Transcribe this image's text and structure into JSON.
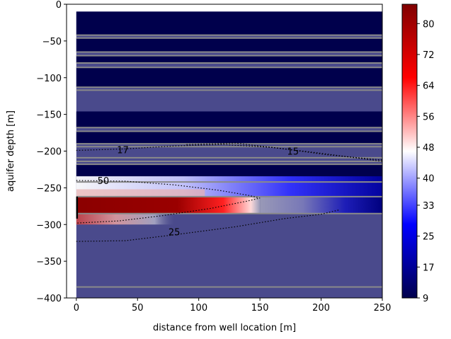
{
  "chart_data": {
    "type": "heatmap",
    "title": "",
    "xlabel": "distance from well location [m]",
    "ylabel": "aquifer depth [m]",
    "xlim": [
      -8,
      250
    ],
    "ylim": [
      -400,
      0
    ],
    "x_ticks": [
      0,
      50,
      100,
      150,
      200,
      250
    ],
    "y_ticks": [
      0,
      -50,
      -100,
      -150,
      -200,
      -250,
      -300,
      -350,
      -400
    ],
    "colormap": "seismic",
    "colorbar": {
      "min": 9,
      "max": 85,
      "ticks": [
        9,
        17,
        25,
        33,
        40,
        48,
        56,
        64,
        72,
        80
      ]
    },
    "background_value": 28,
    "layers": [
      {
        "top": -10,
        "bottom": -42,
        "value": 9
      },
      {
        "top": -46,
        "bottom": -65,
        "value": 9
      },
      {
        "top": -70,
        "bottom": -80,
        "value": 9
      },
      {
        "top": -86,
        "bottom": -113,
        "value": 9
      },
      {
        "top": -146,
        "bottom": -168,
        "value": 9
      },
      {
        "top": -173,
        "bottom": -190,
        "value": 9
      },
      {
        "top": -218,
        "bottom": -242,
        "value": 9
      },
      {
        "top": -262,
        "bottom": -285,
        "value": 9
      }
    ],
    "layer_boundaries": [
      -42,
      -46,
      -65,
      -70,
      -80,
      -86,
      -113,
      -117,
      -168,
      -173,
      -190,
      -194,
      -209,
      -214,
      -218,
      -242,
      -262,
      -285,
      -385
    ],
    "plume": [
      {
        "x_start": 0,
        "x_end": 150,
        "y_top": -262,
        "y_bottom": -285,
        "value": 85
      },
      {
        "x_start": 0,
        "x_end": 120,
        "y_top": -242,
        "y_bottom": -262,
        "value": 62
      },
      {
        "x_start": 0,
        "x_end": 80,
        "y_top": -285,
        "y_bottom": -300,
        "value": 60
      }
    ],
    "well_screen": {
      "x": 0,
      "y_top": -262,
      "y_bottom": -292
    },
    "contours": [
      {
        "label": "17",
        "label_x": 38,
        "label_y": -198,
        "points": [
          [
            0,
            -199
          ],
          [
            40,
            -197
          ],
          [
            80,
            -193
          ],
          [
            120,
            -191
          ],
          [
            160,
            -195
          ],
          [
            200,
            -203
          ],
          [
            250,
            -214
          ]
        ]
      },
      {
        "label": "15",
        "label_x": 177,
        "label_y": -200,
        "points": [
          [
            90,
            -191
          ],
          [
            130,
            -189
          ],
          [
            170,
            -197
          ],
          [
            205,
            -205
          ],
          [
            250,
            -212
          ]
        ]
      },
      {
        "label": "50",
        "label_x": 22,
        "label_y": -240,
        "points": [
          [
            0,
            -240
          ],
          [
            40,
            -241
          ],
          [
            80,
            -246
          ],
          [
            115,
            -253
          ],
          [
            140,
            -260
          ],
          [
            150,
            -264
          ],
          [
            140,
            -268
          ],
          [
            110,
            -278
          ],
          [
            70,
            -288
          ],
          [
            35,
            -295
          ],
          [
            0,
            -298
          ]
        ]
      },
      {
        "label": "25",
        "label_x": 80,
        "label_y": -310,
        "points": [
          [
            0,
            -323
          ],
          [
            40,
            -322
          ],
          [
            80,
            -314
          ],
          [
            130,
            -303
          ],
          [
            170,
            -292
          ],
          [
            200,
            -286
          ],
          [
            215,
            -280
          ]
        ]
      }
    ]
  }
}
